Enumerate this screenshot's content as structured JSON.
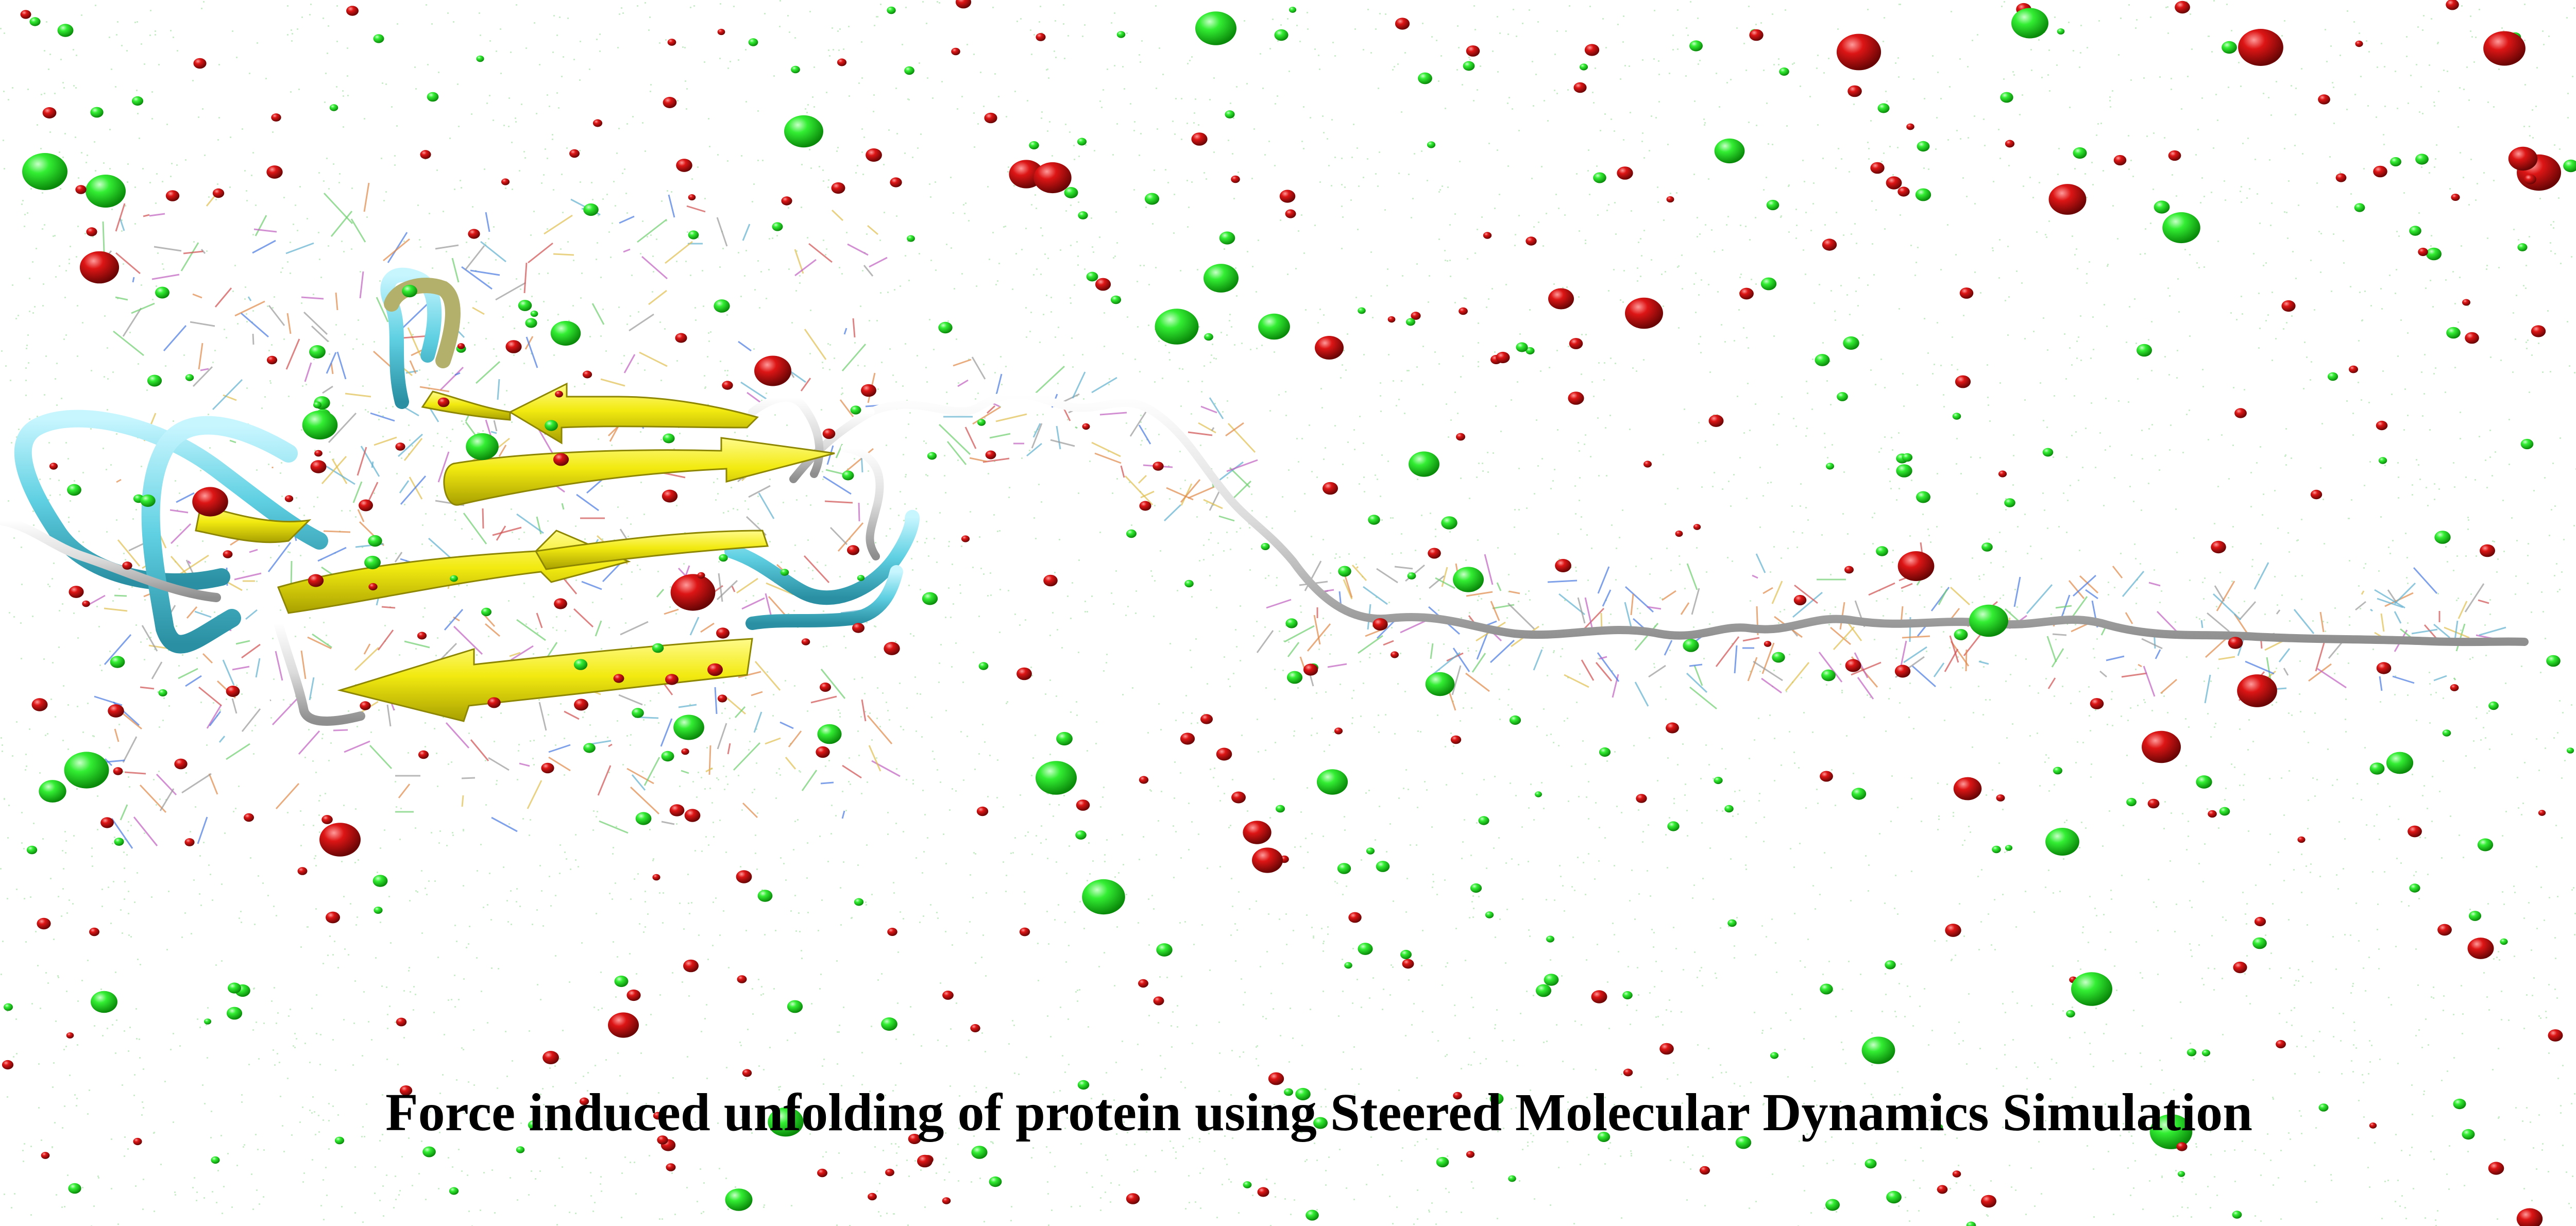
{
  "caption": "Force induced unfolding of protein using Steered Molecular Dynamics Simulation",
  "colors": {
    "background": "#ffffff",
    "water_dots": "#9fe09f",
    "ion_green": "#22dd22",
    "ion_red": "#cc1111",
    "beta_sheet": "#f2ec1a",
    "coil": "#6fd6e6",
    "extended_chain": "#d8d8d8"
  }
}
